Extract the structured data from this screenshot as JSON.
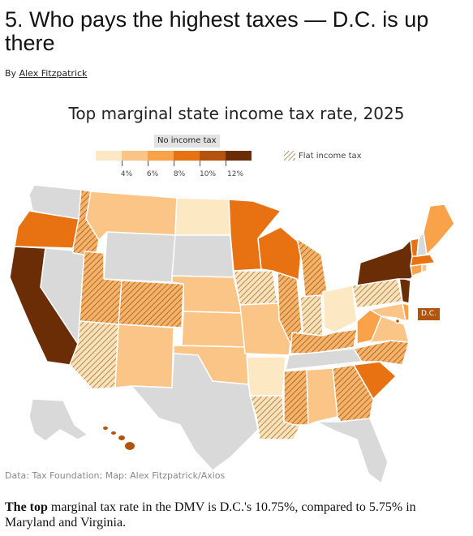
{
  "headline": "5. Who pays the highest taxes — D.C. is up there",
  "byline": {
    "prefix": "By",
    "author": "Alex Fitzpatrick"
  },
  "map": {
    "title": "Top marginal state income tax rate, 2025",
    "legend": {
      "no_income_tax_label": "No income tax",
      "flat_label": "Flat income tax",
      "tick_labels": [
        "4%",
        "6%",
        "8%",
        "10%",
        "12%"
      ],
      "colors": [
        "#fde8c4",
        "#fcc588",
        "#f9a24a",
        "#e87211",
        "#b3540e",
        "#6b2d05"
      ],
      "no_tax_color": "#d9d9d9"
    },
    "dc_label": "D.C.",
    "source": "Data: Tax Foundation; Map: Alex Fitzpatrick/Axios"
  },
  "caption": {
    "lead": "The top",
    "rest": " marginal tax rate in the DMV is D.C.'s 10.75%, compared to 5.75% in Maryland and Virginia."
  }
}
